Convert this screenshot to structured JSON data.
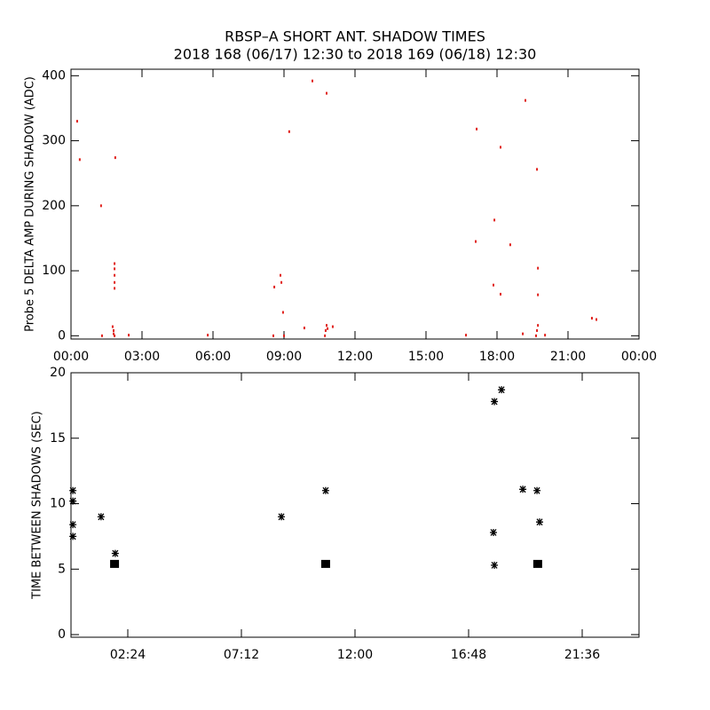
{
  "chart_data": [
    {
      "type": "scatter",
      "title": "RBSP–A SHORT ANT. SHADOW TIMES",
      "subtitle": "2018 168 (06/17) 12:30 to 2018 169 (06/18) 12:30",
      "ylabel": "Probe 5 DELTA AMP DURING SHADOW (ADC)",
      "xlim": [
        0,
        24
      ],
      "ylim": [
        -5,
        410
      ],
      "xticks": [
        {
          "value": 0,
          "label": "00:00"
        },
        {
          "value": 3,
          "label": "03:00"
        },
        {
          "value": 6,
          "label": "06:00"
        },
        {
          "value": 9,
          "label": "09:00"
        },
        {
          "value": 12,
          "label": "12:00"
        },
        {
          "value": 15,
          "label": "15:00"
        },
        {
          "value": 18,
          "label": "18:00"
        },
        {
          "value": 21,
          "label": "21:00"
        },
        {
          "value": 24,
          "label": "00:00"
        }
      ],
      "yticks": [
        0,
        100,
        200,
        300,
        400
      ],
      "series": [
        {
          "color": "#e0201b",
          "marker": "dot",
          "x": [
            0.26,
            0.37,
            1.27,
            1.87,
            1.84,
            1.84,
            1.84,
            1.84,
            1.84,
            1.76,
            1.8,
            1.8,
            1.84,
            1.31,
            2.44,
            5.78,
            8.55,
            8.85,
            8.89,
            8.59,
            8.96,
            9.22,
            9.0,
            9.86,
            10.2,
            10.8,
            10.73,
            10.76,
            10.8,
            10.84,
            11.06,
            16.69,
            17.14,
            17.1,
            17.89,
            17.85,
            18.15,
            18.15,
            18.56,
            19.2,
            19.69,
            19.73,
            19.73,
            19.65,
            19.69,
            19.73,
            19.09,
            22.01,
            22.2,
            20.03
          ],
          "y": [
            330,
            271,
            200,
            274,
            111,
            103,
            93,
            82,
            73,
            14,
            8,
            3,
            0,
            0,
            1,
            1,
            0,
            93,
            82,
            75,
            36,
            314,
            0,
            12,
            392,
            373,
            0,
            8,
            16,
            11,
            14,
            1,
            318,
            145,
            178,
            78,
            290,
            64,
            140,
            362,
            256,
            104,
            63,
            0,
            8,
            16,
            3,
            27,
            25,
            1
          ]
        }
      ]
    },
    {
      "type": "scatter",
      "ylabel": "TIME BETWEEN SHADOWS (SEC)",
      "xlim": [
        0,
        24
      ],
      "ylim": [
        -0.2,
        20
      ],
      "xticks": [
        {
          "value": 2.4,
          "label": "02:24"
        },
        {
          "value": 7.2,
          "label": "07:12"
        },
        {
          "value": 12,
          "label": "12:00"
        },
        {
          "value": 16.8,
          "label": "16:48"
        },
        {
          "value": 21.6,
          "label": "21:36"
        }
      ],
      "yticks": [
        0,
        5,
        10,
        15,
        20
      ],
      "series": [
        {
          "color": "#000000",
          "marker": "asterisk",
          "x": [
            0.08,
            0.08,
            0.08,
            0.08,
            1.27,
            1.87,
            8.89,
            10.76,
            17.85,
            17.89,
            18.19,
            17.89,
            19.09,
            19.69,
            19.8
          ],
          "y": [
            11.0,
            10.2,
            8.4,
            7.5,
            9.0,
            6.2,
            9.0,
            11.0,
            7.8,
            17.8,
            18.7,
            5.3,
            11.1,
            11.0,
            8.6
          ]
        },
        {
          "color": "#000000",
          "marker": "square",
          "x": [
            1.84,
            10.76,
            19.72
          ],
          "y": [
            5.4,
            5.4,
            5.4
          ]
        }
      ]
    }
  ]
}
